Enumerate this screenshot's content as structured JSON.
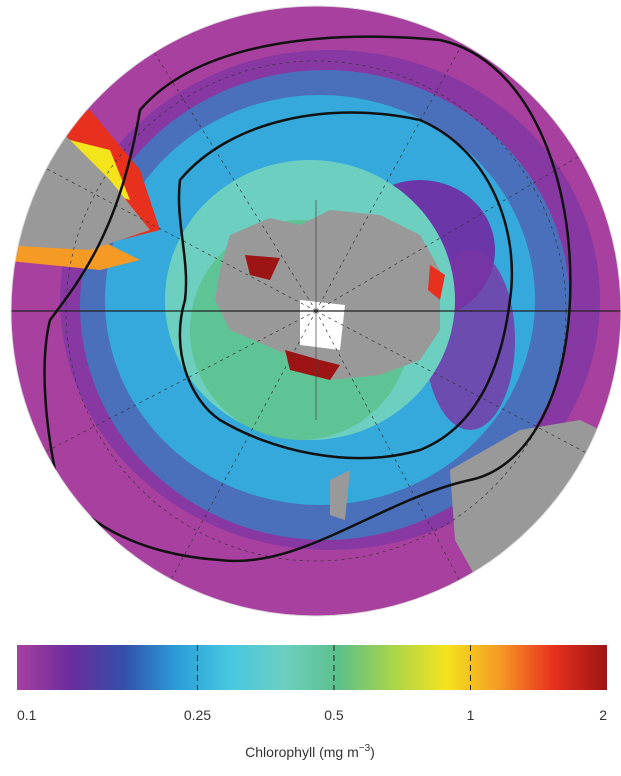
{
  "colorbar": {
    "ticks": [
      0.1,
      0.25,
      0.5,
      1,
      2
    ],
    "lim": [
      0.1,
      2
    ],
    "scale": "log",
    "colors": [
      "#a8409f",
      "#6a2c9e",
      "#3350a8",
      "#2a9fd8",
      "#48c8e0",
      "#6ccfc0",
      "#5cc08a",
      "#a8d44a",
      "#f4e41c",
      "#f59a24",
      "#e8301e",
      "#9c1414"
    ],
    "label": "Chlorophyll (mg m",
    "label_exponent": "−3",
    "label_close": ")"
  }
}
